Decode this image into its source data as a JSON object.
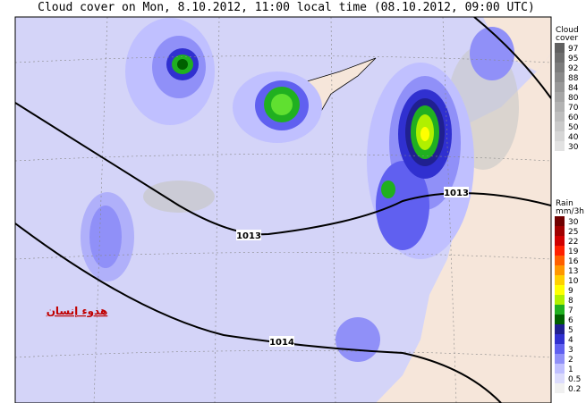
{
  "title": "Cloud cover on Mon, 8.10.2012, 11:00 local time (08.10.2012, 09:00 UTC)",
  "isobars": [
    {
      "label": "1013"
    },
    {
      "label": "1013"
    },
    {
      "label": "1014"
    }
  ],
  "watermark": "هدوء إنسان",
  "cloud_legend": {
    "title_lines": [
      "Cloud",
      "cover"
    ],
    "levels": [
      {
        "value": 97,
        "color": "#606060"
      },
      {
        "value": 95,
        "color": "#6e6e6e"
      },
      {
        "value": 92,
        "color": "#7c7c7c"
      },
      {
        "value": 88,
        "color": "#8a8a8a"
      },
      {
        "value": 84,
        "color": "#989898"
      },
      {
        "value": 80,
        "color": "#a6a6a6"
      },
      {
        "value": 70,
        "color": "#b2b2b2"
      },
      {
        "value": 60,
        "color": "#bebebe"
      },
      {
        "value": 50,
        "color": "#cacaca"
      },
      {
        "value": 40,
        "color": "#d6d6d6"
      },
      {
        "value": 30,
        "color": "#e2e2e2"
      }
    ]
  },
  "rain_legend": {
    "title_lines": [
      "Rain",
      "mm/3h"
    ],
    "levels": [
      {
        "value": 30,
        "color": "#700000"
      },
      {
        "value": 25,
        "color": "#a00000"
      },
      {
        "value": 22,
        "color": "#d00000"
      },
      {
        "value": 19,
        "color": "#ff2000"
      },
      {
        "value": 16,
        "color": "#ff6000"
      },
      {
        "value": 13,
        "color": "#ff9800"
      },
      {
        "value": 10,
        "color": "#ffd000"
      },
      {
        "value": 9,
        "color": "#ffff00"
      },
      {
        "value": 8,
        "color": "#b0f000"
      },
      {
        "value": 7,
        "color": "#20b020"
      },
      {
        "value": 6,
        "color": "#006000"
      },
      {
        "value": 5,
        "color": "#202090"
      },
      {
        "value": 4,
        "color": "#3030d0"
      },
      {
        "value": 3,
        "color": "#6060f0"
      },
      {
        "value": 2,
        "color": "#9090f8"
      },
      {
        "value": 1,
        "color": "#c0c0ff"
      },
      {
        "value": 0.5,
        "color": "#dcdcfc"
      },
      {
        "value": 0.2,
        "color": "#f0f0f0"
      }
    ]
  }
}
